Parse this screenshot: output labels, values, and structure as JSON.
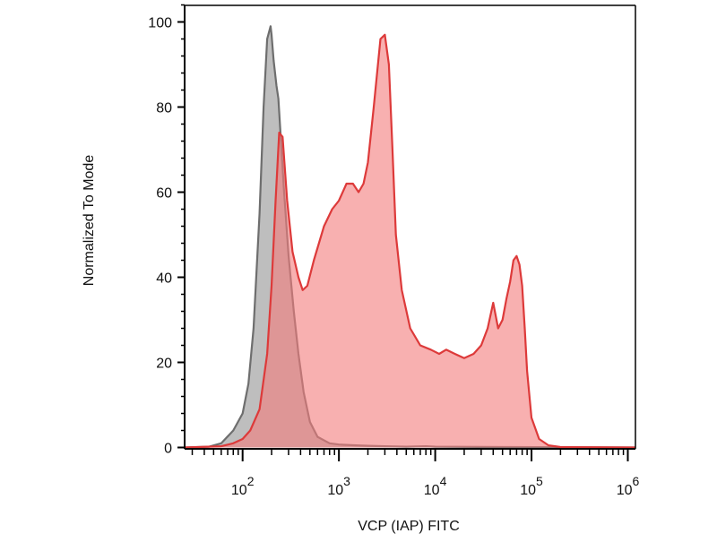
{
  "chart_data": {
    "type": "area",
    "title": "",
    "xlabel": "VCP (IAP) FITC",
    "ylabel": "Normalized To Mode",
    "x_scale": "log",
    "xlim": [
      25,
      1200000
    ],
    "ylim": [
      0,
      105
    ],
    "x_ticks": [
      {
        "value": 100,
        "base": "10",
        "exp": "2"
      },
      {
        "value": 1000,
        "base": "10",
        "exp": "3"
      },
      {
        "value": 10000,
        "base": "10",
        "exp": "4"
      },
      {
        "value": 100000,
        "base": "10",
        "exp": "5"
      },
      {
        "value": 1000000,
        "base": "10",
        "exp": "6"
      }
    ],
    "y_ticks": [
      0,
      20,
      40,
      60,
      80,
      100
    ],
    "grid": false,
    "legend": "none",
    "series": [
      {
        "color": "#6e6e6e",
        "fill": "#9b9b9b",
        "x": [
          25,
          45,
          60,
          80,
          100,
          115,
          130,
          150,
          165,
          180,
          195,
          200,
          210,
          225,
          235,
          250,
          270,
          300,
          340,
          380,
          430,
          500,
          600,
          800,
          1000,
          1500,
          2000,
          3000,
          5000,
          8000,
          10000,
          50000,
          1200000
        ],
        "y": [
          0,
          0.2,
          1,
          4,
          8,
          15,
          28,
          55,
          80,
          96,
          99,
          97,
          91,
          85,
          82,
          72,
          60,
          45,
          32,
          22,
          13,
          6,
          2.5,
          1,
          0.7,
          0.5,
          0.4,
          0.3,
          0.2,
          0.3,
          0.2,
          0.1,
          0
        ]
      },
      {
        "color": "#dd3a3a",
        "fill": "#f47c7c",
        "x": [
          25,
          60,
          80,
          100,
          120,
          150,
          180,
          200,
          220,
          240,
          260,
          290,
          330,
          380,
          420,
          470,
          550,
          700,
          850,
          1000,
          1200,
          1400,
          1600,
          1800,
          2000,
          2300,
          2700,
          3000,
          3300,
          3600,
          3900,
          4500,
          5500,
          7000,
          9000,
          11000,
          13000,
          16000,
          20000,
          25000,
          30000,
          35000,
          40000,
          45000,
          50000,
          55000,
          60000,
          65000,
          70000,
          75000,
          80000,
          85000,
          90000,
          100000,
          120000,
          150000,
          200000,
          1200000
        ],
        "y": [
          0,
          0.3,
          1,
          2,
          4,
          9,
          22,
          38,
          58,
          74,
          73,
          58,
          46,
          40,
          37,
          38,
          44,
          52,
          56,
          58,
          62,
          62,
          60,
          62,
          67,
          80,
          96,
          97,
          90,
          70,
          50,
          37,
          28,
          24,
          23,
          22,
          23,
          22,
          21,
          22,
          24,
          28,
          34,
          28,
          30,
          35,
          39,
          44,
          45,
          43,
          38,
          28,
          18,
          7,
          2,
          0.5,
          0.1,
          0
        ]
      }
    ]
  }
}
